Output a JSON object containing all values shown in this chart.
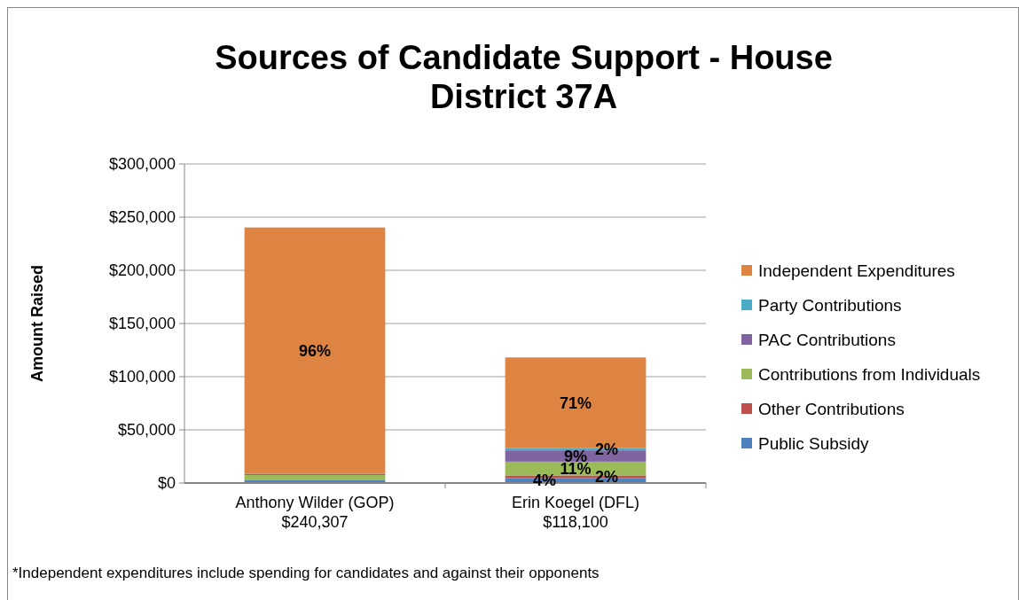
{
  "chart_data": {
    "type": "bar",
    "stacked": true,
    "title": "Sources of Candidate Support - House District 37A",
    "ylabel": "Amount Raised",
    "categories": [
      "Anthony Wilder (GOP)\n$240,307",
      "Erin Koegel (DFL)\n$118,100"
    ],
    "series": [
      {
        "name": "Public Subsidy",
        "color": "#4f81bd",
        "values": [
          3000,
          4700
        ]
      },
      {
        "name": "Other Contributions",
        "color": "#c0504d",
        "values": [
          null,
          2400
        ]
      },
      {
        "name": "Contributions from Individuals",
        "color": "#9bbb59",
        "values": [
          4500,
          13000
        ]
      },
      {
        "name": "PAC Contributions",
        "color": "#8064a2",
        "values": [
          1200,
          10600
        ]
      },
      {
        "name": "Party Contributions",
        "color": "#4bacc6",
        "values": [
          null,
          2400
        ]
      },
      {
        "name": "Independent Expenditures",
        "color": "#dd8443",
        "values": [
          231600,
          85000
        ]
      }
    ],
    "ylim": [
      0,
      300000
    ],
    "yticks": [
      {
        "value": 0,
        "label": "$0"
      },
      {
        "value": 50000,
        "label": "$50,000"
      },
      {
        "value": 100000,
        "label": "$100,000"
      },
      {
        "value": 150000,
        "label": "$150,000"
      },
      {
        "value": 200000,
        "label": "$200,000"
      },
      {
        "value": 250000,
        "label": "$250,000"
      },
      {
        "value": 300000,
        "label": "$300,000"
      }
    ],
    "grid": "y",
    "legend": "right",
    "annotations": [
      "96%",
      "71%",
      {
        "text": "2%",
        "x": "Erin Koegel (DFL)\n$118,100",
        "y": 33100
      },
      {
        "text": "9%",
        "x": "Erin Koegel (DFL)\n$118,100",
        "y": 30700
      },
      {
        "text": "11%",
        "x": "Erin Koegel (DFL)\n$118,100",
        "y": 20100
      },
      {
        "text": "2%",
        "x": "Erin Koegel (DFL)\n$118,100",
        "y": 7100
      },
      {
        "text": "4%",
        "x": "Erin Koegel (DFL)\n$118,100",
        "y": 4700
      },
      "*Independent expenditures include spending for candidates and against their opponents"
    ]
  }
}
